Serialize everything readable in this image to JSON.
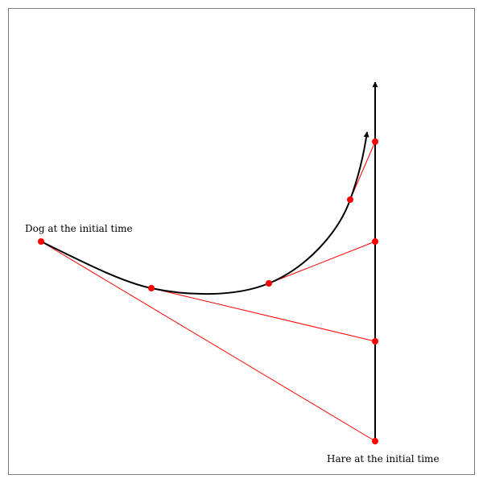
{
  "labels": {
    "dog": "Dog at the initial time",
    "hare": "Hare at the initial time"
  },
  "colors": {
    "path": "#000000",
    "points": "#ff0000",
    "sight_lines": "#ff0000",
    "frame": "#808080"
  }
}
